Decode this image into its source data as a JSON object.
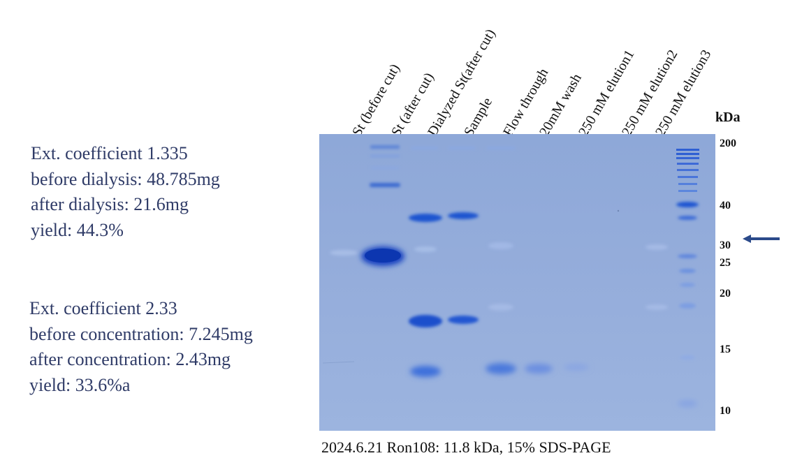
{
  "notes": [
    {
      "ext_coefficient": "Ext. coefficient  1.335",
      "before": "before dialysis: 48.785mg",
      "after": "after dialysis: 21.6mg",
      "yield": "yield: 44.3%"
    },
    {
      "ext_coefficient": "Ext. coefficient  2.33",
      "before": "before concentration: 7.245mg",
      "after": "after concentration: 2.43mg",
      "yield": "yield: 33.6%a"
    }
  ],
  "lanes": [
    "St (before cut)",
    "St (after cut)",
    "Dialyzed St(after cut)",
    "Sample",
    "Flow through",
    "20mM wash",
    "250 mM elution1",
    "250 mM elution2",
    "250 mM elution3"
  ],
  "marker_unit": "kDa",
  "marker_labels": [
    "200",
    "40",
    "30",
    "25",
    "20",
    "15",
    "10"
  ],
  "caption": "2024.6.21  Ron108: 11.8 kDa, 15% SDS-PAGE",
  "colors": {
    "gel_background": "#93acd9",
    "band_strong": "#1a4fc8",
    "band_faint": "#a7bde6",
    "note_text": "#2f3b67",
    "arrow": "#2b4a8a"
  },
  "icons": {
    "arrow": "left-arrow-icon"
  }
}
